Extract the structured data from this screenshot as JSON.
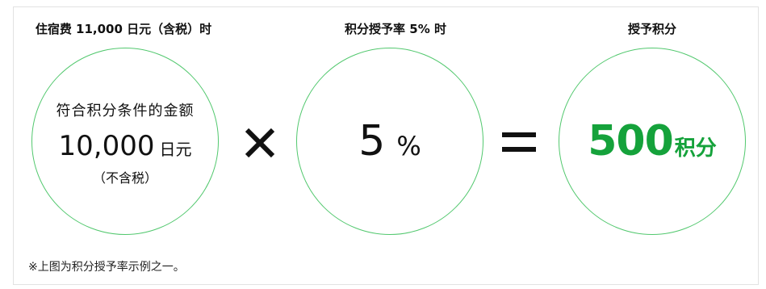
{
  "titles": {
    "fee": "住宿费 11,000 日元（含税）时",
    "rate": "积分授予率 5% 时",
    "points": "授予积分"
  },
  "circle_amount": {
    "label": "符合积分条件的金额",
    "value": "10,000",
    "unit": "日元",
    "note": "（不含税）"
  },
  "circle_rate": {
    "value": "5",
    "unit": "%"
  },
  "circle_points": {
    "value": "500",
    "unit": "积分"
  },
  "operators": {
    "multiply_icon": "multiply-icon",
    "equals_icon": "equals-icon"
  },
  "colors": {
    "circle_border": "#52c86e",
    "points_text": "#15a23b"
  },
  "footnote": "※上图为积分授予率示例之一。"
}
